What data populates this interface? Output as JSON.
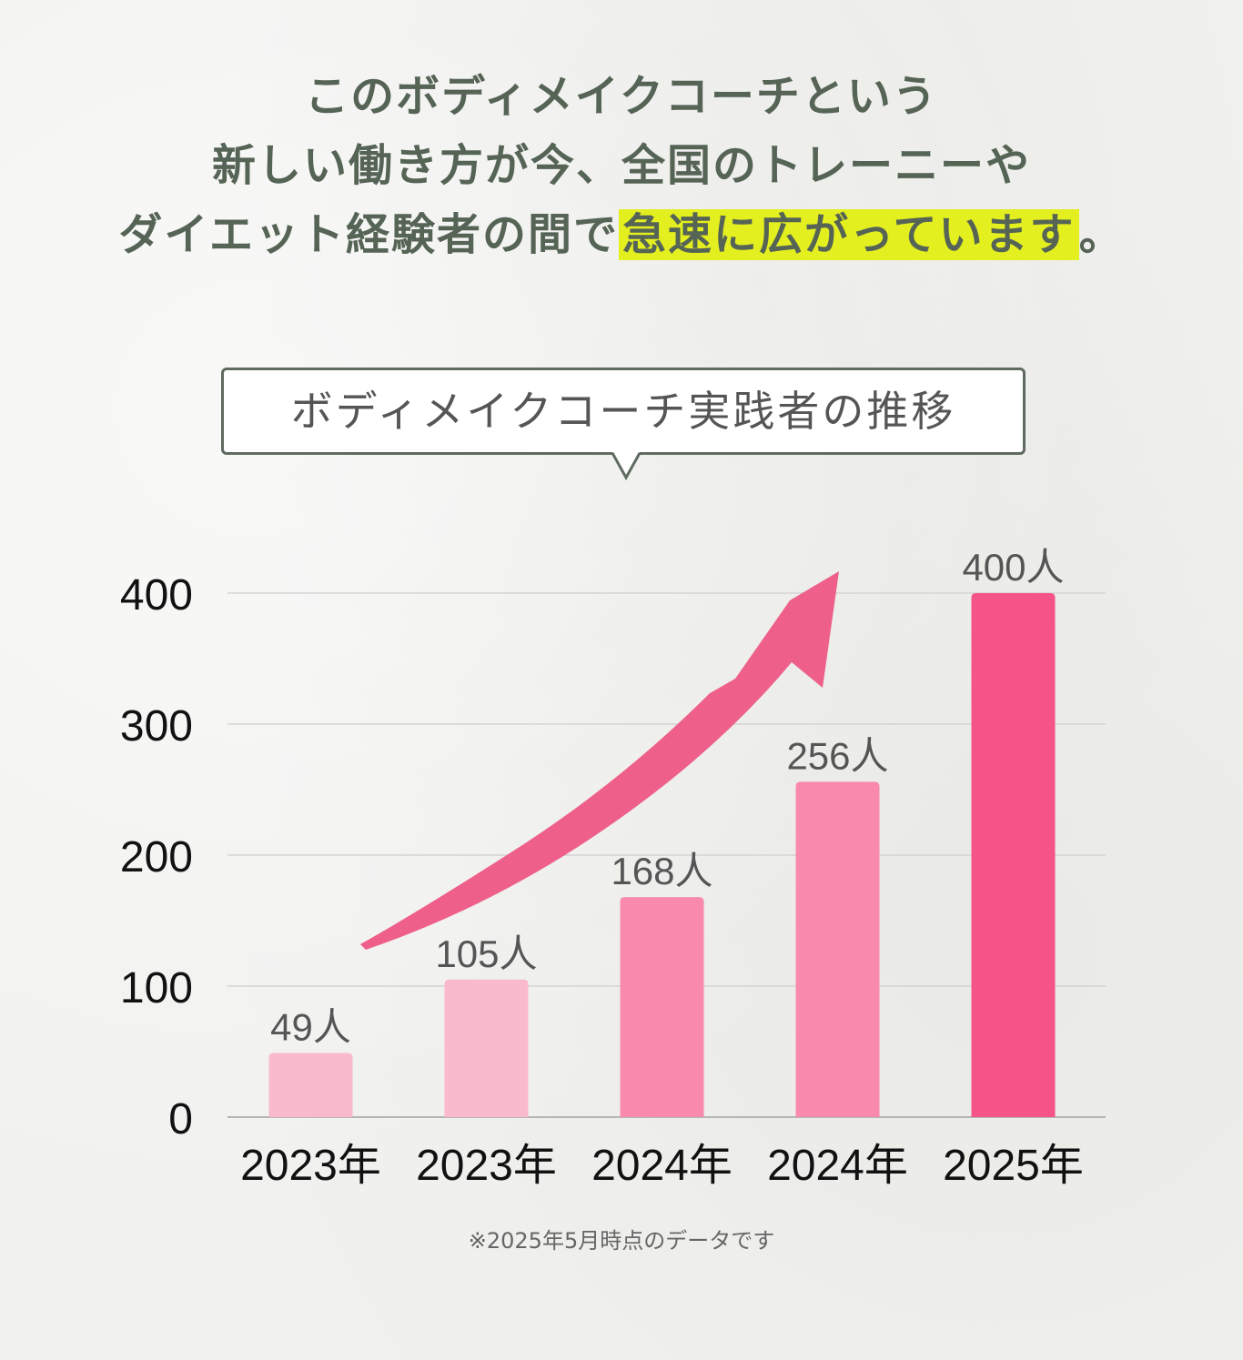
{
  "headline": {
    "line1": "このボディメイクコーチという",
    "line2": "新しい働き方が今、全国のトレーニーや",
    "line3_pre": "ダイエット経験者の間で",
    "line3_highlight": "急速に広がっています",
    "line3_post": "。",
    "highlight_color": "#e4ef1f"
  },
  "callout": {
    "text": "ボディメイクコーチ実践者の推移"
  },
  "chart_data": {
    "type": "bar",
    "categories": [
      "2023年",
      "2023年",
      "2024年",
      "2024年",
      "2025年"
    ],
    "values": [
      49,
      105,
      168,
      256,
      400
    ],
    "value_labels": [
      "49人",
      "105人",
      "168人",
      "256人",
      "400人"
    ],
    "ylim": [
      0,
      400
    ],
    "yticks": [
      0,
      100,
      200,
      300,
      400
    ],
    "grid": true,
    "bar_colors": [
      "#f9bacd",
      "#f9bacd",
      "#f98aab",
      "#f98aab",
      "#f55487"
    ],
    "trend_arrow_color": "#ee6089"
  },
  "footnote": "※2025年5月時点のデータです"
}
